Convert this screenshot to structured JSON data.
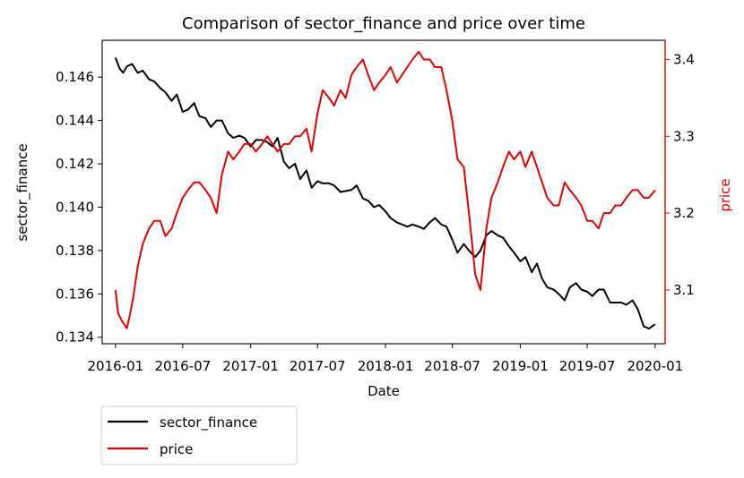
{
  "chart_data": {
    "type": "line",
    "title": "Comparison of sector_finance and price over time",
    "xlabel": "Date",
    "ylabel": "sector_finance",
    "y2label": "price",
    "x_ticks": [
      "2016-01",
      "2016-07",
      "2017-01",
      "2017-07",
      "2018-01",
      "2018-07",
      "2019-01",
      "2019-07",
      "2020-01"
    ],
    "y_ticks": [
      "0.134",
      "0.136",
      "0.138",
      "0.140",
      "0.142",
      "0.144",
      "0.146"
    ],
    "y2_ticks": [
      "3.1",
      "3.2",
      "3.3",
      "3.4"
    ],
    "xlim": [
      "2015-11-26",
      "2020-01-28"
    ],
    "ylim": [
      0.1337,
      0.1477
    ],
    "y2lim": [
      3.03,
      3.425
    ],
    "grid": false,
    "legend_position": "below-left",
    "colors": {
      "sector_finance": "#000000",
      "price": "#e00000"
    },
    "series": [
      {
        "name": "sector_finance",
        "axis": "left",
        "color": "#000000",
        "x": [
          "2016-01-01",
          "2016-01-12",
          "2016-01-22",
          "2016-02-01",
          "2016-02-15",
          "2016-03-01",
          "2016-03-15",
          "2016-04-01",
          "2016-04-15",
          "2016-05-01",
          "2016-05-15",
          "2016-06-01",
          "2016-06-15",
          "2016-07-01",
          "2016-07-15",
          "2016-08-01",
          "2016-08-15",
          "2016-09-01",
          "2016-09-15",
          "2016-10-01",
          "2016-10-15",
          "2016-11-01",
          "2016-11-15",
          "2016-12-01",
          "2016-12-15",
          "2017-01-01",
          "2017-01-15",
          "2017-02-01",
          "2017-02-15",
          "2017-03-01",
          "2017-03-15",
          "2017-04-01",
          "2017-04-15",
          "2017-05-01",
          "2017-05-15",
          "2017-06-01",
          "2017-06-15",
          "2017-07-01",
          "2017-07-15",
          "2017-08-01",
          "2017-08-15",
          "2017-09-01",
          "2017-10-01",
          "2017-10-15",
          "2017-11-01",
          "2017-11-15",
          "2017-12-01",
          "2017-12-15",
          "2018-01-01",
          "2018-01-15",
          "2018-02-01",
          "2018-02-15",
          "2018-03-01",
          "2018-03-15",
          "2018-04-01",
          "2018-04-15",
          "2018-05-01",
          "2018-05-15",
          "2018-06-01",
          "2018-06-15",
          "2018-07-01",
          "2018-07-15",
          "2018-08-01",
          "2018-08-15",
          "2018-09-01",
          "2018-09-15",
          "2018-10-01",
          "2018-10-15",
          "2018-11-01",
          "2018-11-15",
          "2018-12-01",
          "2018-12-15",
          "2019-01-01",
          "2019-01-15",
          "2019-02-01",
          "2019-02-15",
          "2019-03-01",
          "2019-03-15",
          "2019-04-01",
          "2019-04-15",
          "2019-05-01",
          "2019-05-15",
          "2019-06-01",
          "2019-06-15",
          "2019-07-01",
          "2019-07-15",
          "2019-08-01",
          "2019-08-15",
          "2019-09-01",
          "2019-09-15",
          "2019-10-01",
          "2019-10-15",
          "2019-11-01",
          "2019-11-15",
          "2019-12-01",
          "2019-12-15",
          "2020-01-01"
        ],
        "values": [
          0.1469,
          0.1464,
          0.1462,
          0.1465,
          0.1466,
          0.1462,
          0.1463,
          0.1459,
          0.1458,
          0.1455,
          0.1453,
          0.1449,
          0.1452,
          0.1444,
          0.1445,
          0.1448,
          0.1442,
          0.1441,
          0.1437,
          0.144,
          0.144,
          0.1434,
          0.1432,
          0.1433,
          0.1432,
          0.1428,
          0.1431,
          0.1431,
          0.143,
          0.1428,
          0.1432,
          0.1421,
          0.1418,
          0.142,
          0.1413,
          0.1417,
          0.1409,
          0.1412,
          0.1411,
          0.1411,
          0.141,
          0.1407,
          0.1408,
          0.141,
          0.1404,
          0.1403,
          0.14,
          0.1401,
          0.1398,
          0.1395,
          0.1393,
          0.1392,
          0.1391,
          0.1392,
          0.1391,
          0.139,
          0.1393,
          0.1395,
          0.1392,
          0.1391,
          0.1385,
          0.1379,
          0.1383,
          0.138,
          0.1377,
          0.138,
          0.1387,
          0.1389,
          0.1387,
          0.1386,
          0.1382,
          0.1379,
          0.1375,
          0.1377,
          0.137,
          0.1374,
          0.1367,
          0.1363,
          0.1362,
          0.136,
          0.1357,
          0.1363,
          0.1365,
          0.1362,
          0.1361,
          0.1359,
          0.1362,
          0.1362,
          0.1356,
          0.1356,
          0.1356,
          0.1355,
          0.1357,
          0.1353,
          0.1345,
          0.1344,
          0.1346
        ]
      },
      {
        "name": "price",
        "axis": "right",
        "color": "#e00000",
        "x": [
          "2016-01-01",
          "2016-01-08",
          "2016-01-18",
          "2016-02-01",
          "2016-02-10",
          "2016-02-18",
          "2016-03-01",
          "2016-03-15",
          "2016-04-01",
          "2016-04-15",
          "2016-05-01",
          "2016-05-15",
          "2016-06-01",
          "2016-06-15",
          "2016-07-01",
          "2016-07-15",
          "2016-08-01",
          "2016-08-15",
          "2016-09-01",
          "2016-09-15",
          "2016-10-01",
          "2016-10-15",
          "2016-11-01",
          "2016-11-15",
          "2016-12-01",
          "2016-12-15",
          "2017-01-01",
          "2017-01-15",
          "2017-02-01",
          "2017-02-15",
          "2017-03-01",
          "2017-03-15",
          "2017-04-01",
          "2017-04-15",
          "2017-05-01",
          "2017-05-15",
          "2017-06-01",
          "2017-06-15",
          "2017-07-01",
          "2017-07-15",
          "2017-08-01",
          "2017-08-15",
          "2017-09-01",
          "2017-09-15",
          "2017-10-01",
          "2017-10-15",
          "2017-11-01",
          "2017-11-15",
          "2017-12-01",
          "2017-12-15",
          "2018-01-01",
          "2018-01-15",
          "2018-02-01",
          "2018-02-15",
          "2018-03-01",
          "2018-03-15",
          "2018-04-01",
          "2018-04-15",
          "2018-05-01",
          "2018-05-15",
          "2018-06-01",
          "2018-06-15",
          "2018-07-01",
          "2018-07-15",
          "2018-08-01",
          "2018-08-15",
          "2018-09-01",
          "2018-09-15",
          "2018-10-01",
          "2018-10-15",
          "2018-11-01",
          "2018-11-15",
          "2018-12-01",
          "2018-12-15",
          "2019-01-01",
          "2019-01-15",
          "2019-02-01",
          "2019-02-15",
          "2019-03-01",
          "2019-03-15",
          "2019-04-01",
          "2019-04-15",
          "2019-05-01",
          "2019-05-15",
          "2019-06-01",
          "2019-06-15",
          "2019-07-01",
          "2019-07-15",
          "2019-08-01",
          "2019-08-15",
          "2019-09-01",
          "2019-09-15",
          "2019-10-01",
          "2019-10-15",
          "2019-11-01",
          "2019-11-15",
          "2019-12-01",
          "2019-12-15",
          "2020-01-01"
        ],
        "values": [
          3.1,
          3.07,
          3.06,
          3.05,
          3.07,
          3.09,
          3.13,
          3.16,
          3.18,
          3.19,
          3.19,
          3.17,
          3.18,
          3.2,
          3.22,
          3.23,
          3.24,
          3.24,
          3.23,
          3.22,
          3.2,
          3.25,
          3.28,
          3.27,
          3.28,
          3.29,
          3.29,
          3.28,
          3.29,
          3.3,
          3.29,
          3.28,
          3.29,
          3.29,
          3.3,
          3.3,
          3.31,
          3.28,
          3.33,
          3.36,
          3.35,
          3.34,
          3.36,
          3.35,
          3.38,
          3.39,
          3.4,
          3.38,
          3.36,
          3.37,
          3.38,
          3.39,
          3.37,
          3.38,
          3.39,
          3.4,
          3.41,
          3.4,
          3.4,
          3.39,
          3.39,
          3.36,
          3.32,
          3.27,
          3.26,
          3.2,
          3.12,
          3.1,
          3.18,
          3.22,
          3.24,
          3.26,
          3.28,
          3.27,
          3.28,
          3.26,
          3.28,
          3.26,
          3.24,
          3.22,
          3.21,
          3.21,
          3.24,
          3.23,
          3.22,
          3.21,
          3.19,
          3.19,
          3.18,
          3.2,
          3.2,
          3.21,
          3.21,
          3.22,
          3.23,
          3.23,
          3.22,
          3.22,
          3.23
        ]
      }
    ]
  }
}
